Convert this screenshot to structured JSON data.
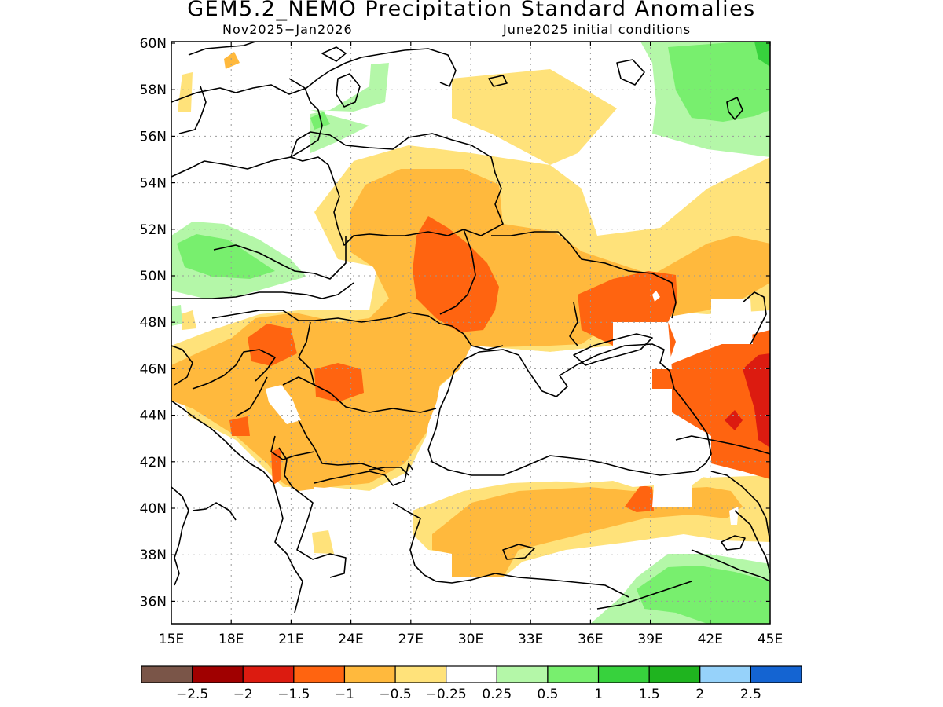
{
  "title": "GEM5.2_NEMO Precipitation Standard Anomalies",
  "subtitle_left": "Nov2025−Jan2026",
  "subtitle_right": "June2025 initial conditions",
  "map": {
    "lat_labels": [
      "60N",
      "58N",
      "56N",
      "54N",
      "52N",
      "50N",
      "48N",
      "46N",
      "44N",
      "42N",
      "40N",
      "38N",
      "36N"
    ],
    "lon_labels": [
      "15E",
      "18E",
      "21E",
      "24E",
      "27E",
      "30E",
      "33E",
      "36E",
      "39E",
      "42E",
      "45E"
    ]
  },
  "legend": {
    "colors": [
      "#7a5548",
      "#a00000",
      "#dc1b10",
      "#ff6410",
      "#ffb93d",
      "#ffe27a",
      "#ffffff",
      "#b4f7a8",
      "#78ef6e",
      "#37d23d",
      "#1fb41f",
      "#96d2fa",
      "#1464d2"
    ],
    "labels": [
      "−2.5",
      "−2",
      "−1.5",
      "−1",
      "−0.5",
      "−0.25",
      "0.25",
      "0.5",
      "1",
      "1.5",
      "2",
      "2.5"
    ]
  }
}
